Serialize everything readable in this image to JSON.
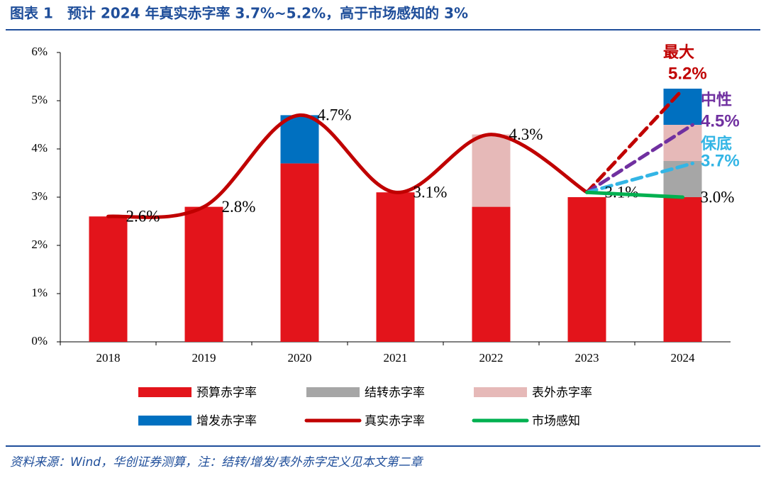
{
  "chart_data": {
    "type": "bar",
    "title": "图表 1　预计 2024 年真实赤字率 3.7%~5.2%，高于市场感知的 3%",
    "source": "资料来源：Wind，华创证券测算，注：结转/增发/表外赤字定义见本文第二章",
    "categories": [
      "2018",
      "2019",
      "2020",
      "2021",
      "2022",
      "2023",
      "2024"
    ],
    "ylim": [
      0,
      6
    ],
    "yticks": [
      {
        "value": 0,
        "label": "0%"
      },
      {
        "value": 1,
        "label": "1%"
      },
      {
        "value": 2,
        "label": "2%"
      },
      {
        "value": 3,
        "label": "3%"
      },
      {
        "value": 4,
        "label": "4%"
      },
      {
        "value": 5,
        "label": "5%"
      },
      {
        "value": 6,
        "label": "6%"
      }
    ],
    "series": [
      {
        "name": "预算赤字率",
        "type": "bar",
        "color": "#e3141b",
        "values": [
          2.6,
          2.8,
          3.7,
          3.1,
          2.8,
          3.0,
          3.0
        ]
      },
      {
        "name": "结转赤字率",
        "type": "bar",
        "color": "#a6a6a6",
        "values": [
          null,
          null,
          null,
          null,
          null,
          null,
          0.75
        ]
      },
      {
        "name": "表外赤字率",
        "type": "bar",
        "color": "#e6b9b8",
        "values": [
          null,
          null,
          null,
          null,
          1.5,
          null,
          0.75
        ]
      },
      {
        "name": "增发赤字率",
        "type": "bar",
        "color": "#0070c0",
        "values": [
          null,
          null,
          1.0,
          null,
          null,
          null,
          0.75
        ]
      },
      {
        "name": "真实赤字率",
        "type": "line",
        "color": "#c00000",
        "values": [
          2.6,
          2.8,
          4.7,
          3.1,
          4.3,
          3.1,
          null
        ],
        "value_labels": [
          "2.6%",
          "2.8%",
          "4.7%",
          "3.1%",
          "4.3%",
          "3.1%",
          null
        ]
      },
      {
        "name": "市场感知",
        "type": "line",
        "color": "#00b050",
        "values": [
          null,
          null,
          null,
          null,
          null,
          3.1,
          3.0
        ],
        "value_labels": [
          null,
          null,
          null,
          null,
          null,
          null,
          "3.0%"
        ]
      }
    ],
    "scenarios": [
      {
        "name": "最大",
        "value": 5.2,
        "value_label": "5.2%",
        "color": "#c00000"
      },
      {
        "name": "中性",
        "value": 4.5,
        "value_label": "4.5%",
        "color": "#7030a0"
      },
      {
        "name": "保底",
        "value": 3.7,
        "value_label": "3.7%",
        "color": "#33b5e5"
      }
    ]
  }
}
